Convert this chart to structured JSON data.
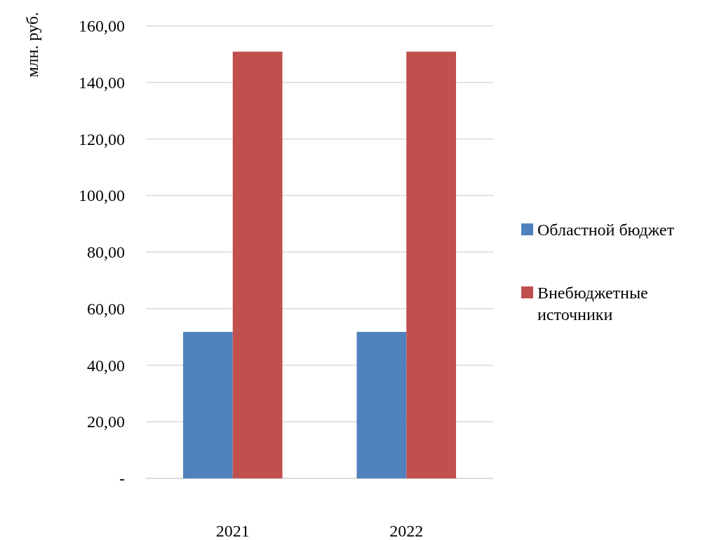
{
  "chart_data": {
    "type": "bar",
    "ylabel": "млн. руб.",
    "categories": [
      "2021",
      "2022"
    ],
    "series": [
      {
        "name": "Областной бюджет",
        "color": "#4f81bd",
        "values": [
          51.8,
          51.8
        ]
      },
      {
        "name": "Внебюджетные источники",
        "color": "#c0504d",
        "values": [
          150.9,
          150.9
        ]
      }
    ],
    "ylim": [
      0,
      160
    ],
    "yticks": [
      {
        "value": 0,
        "label": "-"
      },
      {
        "value": 20,
        "label": "20,00"
      },
      {
        "value": 40,
        "label": "40,00"
      },
      {
        "value": 60,
        "label": "60,00"
      },
      {
        "value": 80,
        "label": "80,00"
      },
      {
        "value": 100,
        "label": "100,00"
      },
      {
        "value": 120,
        "label": "120,00"
      },
      {
        "value": 140,
        "label": "140,00"
      },
      {
        "value": 160,
        "label": "160,00"
      }
    ],
    "grid": "y",
    "legend": "right"
  }
}
